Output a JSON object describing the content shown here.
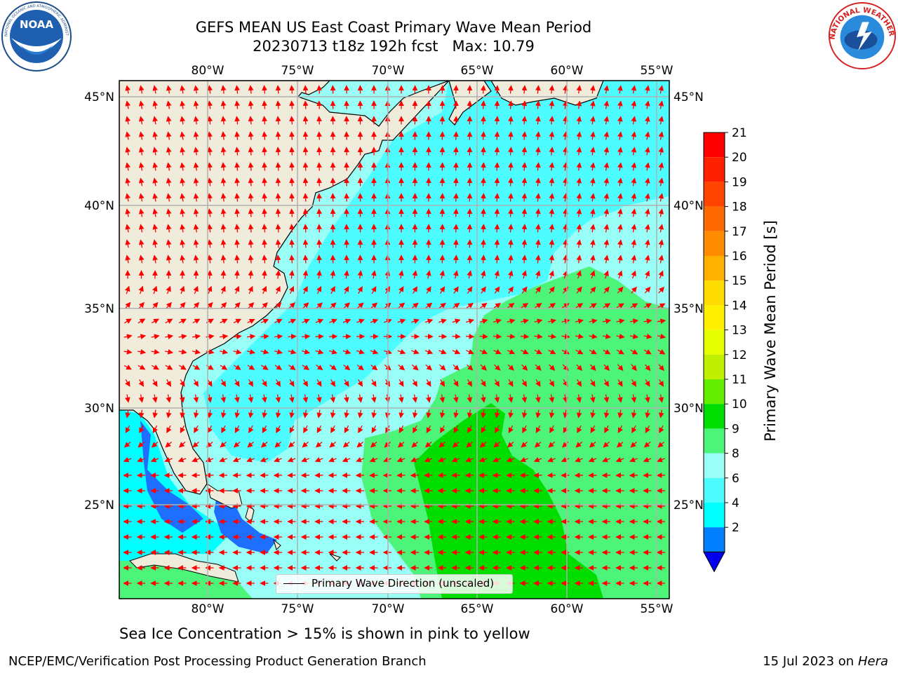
{
  "header": {
    "title_line1": "GEFS MEAN US East Coast Primary Wave Mean Period",
    "run": "20230713 t18z 192h fcst",
    "max_label": "Max: 10.79"
  },
  "logos": {
    "noaa_text": "NOAA",
    "noaa_ring": "NATIONAL OCEANIC AND ATMOSPHERIC ADMINISTRATION · U.S. DEPARTMENT OF COMMERCE",
    "nws_ring": "NATIONAL WEATHER SERVICE"
  },
  "map": {
    "lon_labels": [
      "80°W",
      "75°W",
      "70°W",
      "65°W",
      "60°W",
      "55°W"
    ],
    "lat_labels": [
      "45°N",
      "40°N",
      "35°N",
      "30°N",
      "25°N"
    ],
    "colors": {
      "land": "#efecdc",
      "gridline": "#b0b0b0",
      "arrow": "#ff0000",
      "coast": "#000000"
    },
    "legend_label": "Primary Wave Direction (unscaled)"
  },
  "colorbar": {
    "label": "Primary Wave Mean Period [s]",
    "ticks": [
      "21",
      "20",
      "19",
      "18",
      "17",
      "16",
      "15",
      "14",
      "13",
      "12",
      "11",
      "10",
      "9",
      "8",
      "6",
      "4",
      "2"
    ],
    "colors": [
      "#ff0000",
      "#ff2000",
      "#ff4400",
      "#ff6a00",
      "#ff8c00",
      "#ffb000",
      "#ffdc00",
      "#fff000",
      "#e6ff00",
      "#c0f000",
      "#66ee00",
      "#00dd00",
      "#4cf57a",
      "#99fff6",
      "#4dfcff",
      "#00ffff",
      "#0080ff"
    ],
    "extend_color": "#0000ee"
  },
  "notes": {
    "sea_ice": "Sea Ice Concentration > 15% is shown in pink to yellow",
    "credit": "NCEP/EMC/Verification Post Processing Product Generation Branch",
    "date": "15 Jul 2023 on",
    "host": "Hera"
  }
}
